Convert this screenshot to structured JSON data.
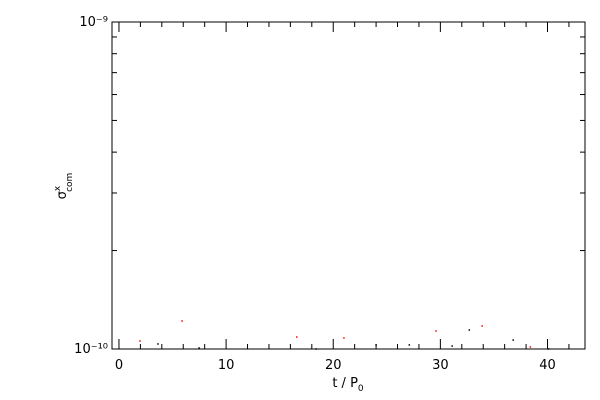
{
  "chart_data": {
    "type": "scatter",
    "xlabel": {
      "text": "t / P",
      "sub": "0"
    },
    "ylabel": {
      "symbol": "σ",
      "sup": "x",
      "sub": "com"
    },
    "xlim": [
      -0.65,
      43.5
    ],
    "ylim": [
      1e-10,
      1e-09
    ],
    "ylog": true,
    "xticks": [
      0,
      10,
      20,
      30,
      40
    ],
    "minor_xticks": [
      2,
      4,
      6,
      8,
      12,
      14,
      16,
      18,
      22,
      24,
      26,
      28,
      32,
      34,
      36,
      38,
      42
    ],
    "yticks": [
      {
        "value": 1e-10,
        "label": "10⁻¹⁰"
      },
      {
        "value": 1e-09,
        "label": "10⁻⁹"
      }
    ],
    "minor_yticks": [
      2e-10,
      3e-10,
      4e-10,
      5e-10,
      6e-10,
      7e-10,
      8e-10,
      9e-10
    ],
    "series": [
      {
        "color": "#ff0000",
        "x": [
          1.96,
          5.89,
          16.6,
          21.0,
          29.6,
          33.9,
          38.4
        ],
        "values": [
          1.058e-10,
          1.218e-10,
          1.088e-10,
          1.081e-10,
          1.135e-10,
          1.176e-10,
          1.014e-10
        ]
      },
      {
        "color": "#000000",
        "x": [
          3.64,
          7.48,
          18.4,
          24.0,
          27.1,
          31.1,
          32.7,
          36.8,
          40.1
        ],
        "values": [
          1.036e-10,
          1.007e-10,
          1e-10,
          1.029e-10,
          1.029e-10,
          1.021e-10,
          1.143e-10,
          1.065e-10,
          1e-10
        ]
      }
    ]
  }
}
